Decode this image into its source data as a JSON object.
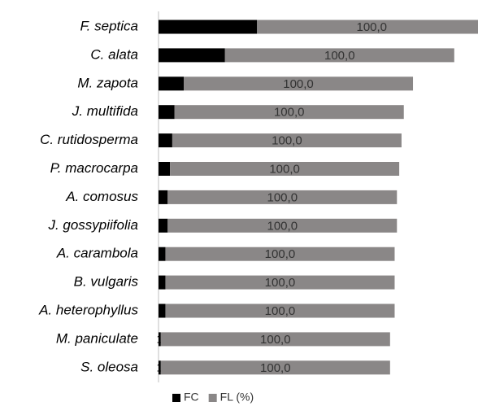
{
  "chart_data": {
    "type": "stacked_bar_horizontal",
    "categories": [
      "F. septica",
      "C. alata",
      "M. zapota",
      "J. multifida",
      "C. rutidosperma",
      "P. macrocarpa",
      "A. comosus",
      "J. gossypiifolia",
      "A. carambola",
      "B. vulgaris",
      "A. heterophyllus",
      "M. paniculate",
      "S. oleosa"
    ],
    "series": [
      {
        "name": "FC",
        "color": "#000000",
        "values": [
          43,
          29,
          11,
          7,
          6,
          5,
          4,
          4,
          3,
          3,
          3,
          1,
          1
        ]
      },
      {
        "name": "FL (%)",
        "color": "#8a8787",
        "values": [
          100,
          100,
          100,
          100,
          100,
          100,
          100,
          100,
          100,
          100,
          100,
          100,
          100
        ],
        "value_labels": [
          "100,0",
          "100,0",
          "100,0",
          "100,0",
          "100,0",
          "100,0",
          "100,0",
          "100,0",
          "100,0",
          "100,0",
          "100,0",
          "100,0",
          "100,0"
        ]
      }
    ],
    "legend": "bottom"
  }
}
